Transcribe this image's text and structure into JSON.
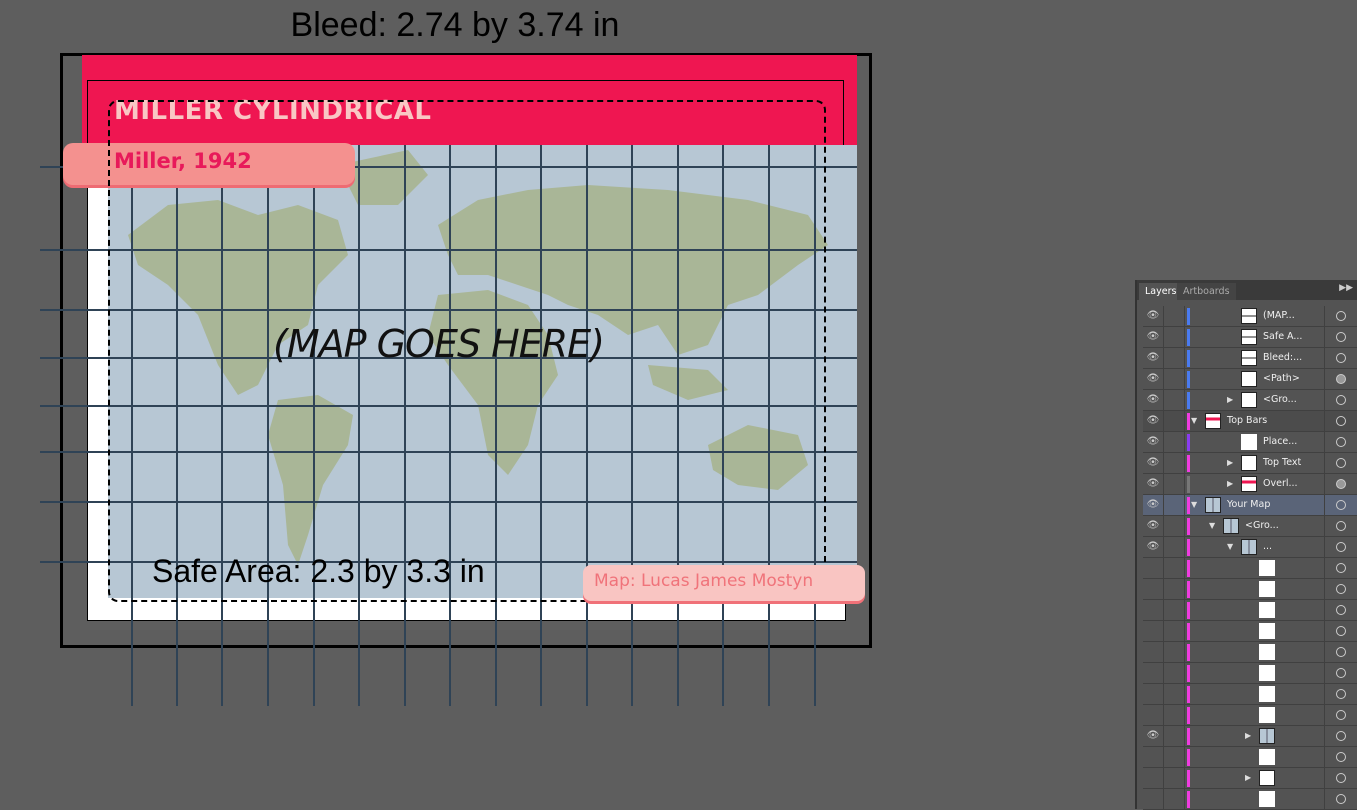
{
  "canvas": {
    "bleed_label": "Bleed: 2.74 by 3.74 in",
    "safe_label": "Safe Area: 2.3 by 3.3 in",
    "title": "MILLER CYLINDRICAL",
    "subtitle": "Miller, 1942",
    "placeholder": "(MAP GOES HERE)",
    "credit": "Map: Lucas James Mostyn",
    "colors": {
      "top_bar": "#ef1651",
      "subtitle_box": "#f4918f",
      "credit_box": "#f9c5c2",
      "ocean": "#b7c7d4",
      "land": "#a9b697",
      "grid": "#2f4356"
    }
  },
  "layers_panel": {
    "tabs": [
      "Layers",
      "Artboards"
    ],
    "active_tab": "Layers",
    "rows": [
      {
        "name": "(MAP...",
        "visible": true,
        "color": "#4a7bf0",
        "depth": 2,
        "expand": "",
        "thumb": "line"
      },
      {
        "name": "Safe A...",
        "visible": true,
        "color": "#4a7bf0",
        "depth": 2,
        "expand": "",
        "thumb": "line"
      },
      {
        "name": "Bleed:...",
        "visible": true,
        "color": "#4a7bf0",
        "depth": 2,
        "expand": "",
        "thumb": "line"
      },
      {
        "name": "<Path>",
        "visible": true,
        "color": "#4a7bf0",
        "depth": 2,
        "expand": "",
        "thumb": "box",
        "target_filled": true
      },
      {
        "name": "<Gro...",
        "visible": true,
        "color": "#4a7bf0",
        "depth": 2,
        "expand": "collapsed",
        "thumb": "box"
      },
      {
        "name": "Top Bars",
        "visible": true,
        "color": "#f03ce0",
        "depth": 0,
        "expand": "expanded",
        "thumb": "bars",
        "dark": true
      },
      {
        "name": "Place...",
        "visible": true,
        "color": "#8a3cf0",
        "depth": 2,
        "expand": "",
        "thumb": "blank"
      },
      {
        "name": "Top Text",
        "visible": true,
        "color": "#f03ce0",
        "depth": 2,
        "expand": "collapsed",
        "thumb": "text"
      },
      {
        "name": "Overl...",
        "visible": true,
        "color": "#777777",
        "depth": 2,
        "expand": "collapsed",
        "thumb": "bars",
        "target_filled": true
      },
      {
        "name": "Your Map",
        "visible": true,
        "color": "#f03ce0",
        "depth": 0,
        "expand": "expanded",
        "thumb": "map",
        "selected": true
      },
      {
        "name": "<Gro...",
        "visible": true,
        "color": "#f03ce0",
        "depth": 1,
        "expand": "expanded",
        "thumb": "map"
      },
      {
        "name": "...",
        "visible": true,
        "color": "#f03ce0",
        "depth": 2,
        "expand": "expanded",
        "thumb": "map"
      },
      {
        "name": "",
        "visible": false,
        "color": "#f03ce0",
        "depth": 3,
        "expand": "",
        "thumb": "blank"
      },
      {
        "name": "",
        "visible": false,
        "color": "#f03ce0",
        "depth": 3,
        "expand": "",
        "thumb": "blank"
      },
      {
        "name": "",
        "visible": false,
        "color": "#f03ce0",
        "depth": 3,
        "expand": "",
        "thumb": "blank"
      },
      {
        "name": "",
        "visible": false,
        "color": "#f03ce0",
        "depth": 3,
        "expand": "",
        "thumb": "blank"
      },
      {
        "name": "",
        "visible": false,
        "color": "#f03ce0",
        "depth": 3,
        "expand": "",
        "thumb": "blank"
      },
      {
        "name": "",
        "visible": false,
        "color": "#f03ce0",
        "depth": 3,
        "expand": "",
        "thumb": "blank"
      },
      {
        "name": "",
        "visible": false,
        "color": "#f03ce0",
        "depth": 3,
        "expand": "",
        "thumb": "blank"
      },
      {
        "name": "",
        "visible": false,
        "color": "#f03ce0",
        "depth": 3,
        "expand": "",
        "thumb": "blank"
      },
      {
        "name": "",
        "visible": true,
        "color": "#f03ce0",
        "depth": 3,
        "expand": "collapsed",
        "thumb": "map"
      },
      {
        "name": "",
        "visible": false,
        "color": "#f03ce0",
        "depth": 3,
        "expand": "",
        "thumb": "blank"
      },
      {
        "name": "",
        "visible": false,
        "color": "#f03ce0",
        "depth": 3,
        "expand": "collapsed",
        "thumb": "box"
      },
      {
        "name": "",
        "visible": false,
        "color": "#f03ce0",
        "depth": 3,
        "expand": "",
        "thumb": "blank"
      }
    ]
  }
}
